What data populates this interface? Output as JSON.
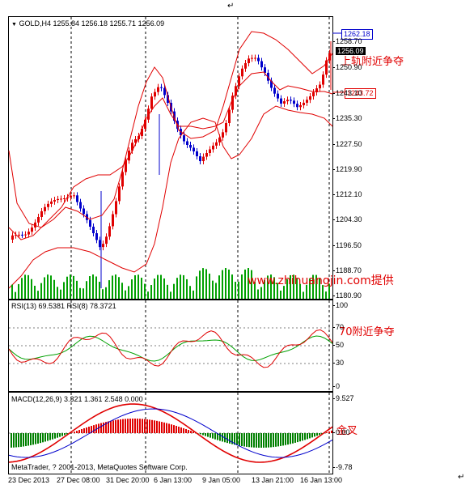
{
  "top_mark": "↵",
  "right_mark": "↵",
  "main": {
    "header": "GOLD,H4  1255.84 1256.18 1255.71 1256.09",
    "price_ticks": [
      "1258.70",
      "1250.90",
      "1243.10",
      "1235.30",
      "1227.50",
      "1219.90",
      "1212.10",
      "1204.30",
      "1196.50",
      "1188.70",
      "1180.90"
    ],
    "current_price": "1256.09",
    "upper_label": "1262.18",
    "mid_label": "1243.72",
    "annotation_upper": "上轨附近争夺",
    "website": "www.zhihuangjin.com提供"
  },
  "rsi": {
    "header": "RSI(13) 69.5381  RSI(8) 78.3721",
    "ticks": [
      "100",
      "70",
      "50",
      "30",
      "0"
    ],
    "annotation": "70附近争夺"
  },
  "macd": {
    "header": "MACD(12,26,9) 3.321 1.361 2.548 0.000",
    "ticks": [
      "9.527",
      "0.00",
      "-9.78"
    ],
    "annotation": "金叉",
    "copyright": "MetaTrader, ? 2001-2013, MetaQuotes Software Corp."
  },
  "time_labels": [
    "23 Dec 2013",
    "27 Dec 08:00",
    "31 Dec 20:00",
    "6 Jan 13:00",
    "9 Jan 05:00",
    "13 Jan 21:00",
    "16 Jan 13:00"
  ],
  "colors": {
    "up": "#e00000",
    "down": "#0000cc",
    "band": "#e00000",
    "volume": "#00a000",
    "rsi_fast": "#e00000",
    "rsi_slow": "#00a000",
    "macd_up": "#e00000",
    "macd_down": "#008000",
    "macd_signal": "#0000cc"
  }
}
